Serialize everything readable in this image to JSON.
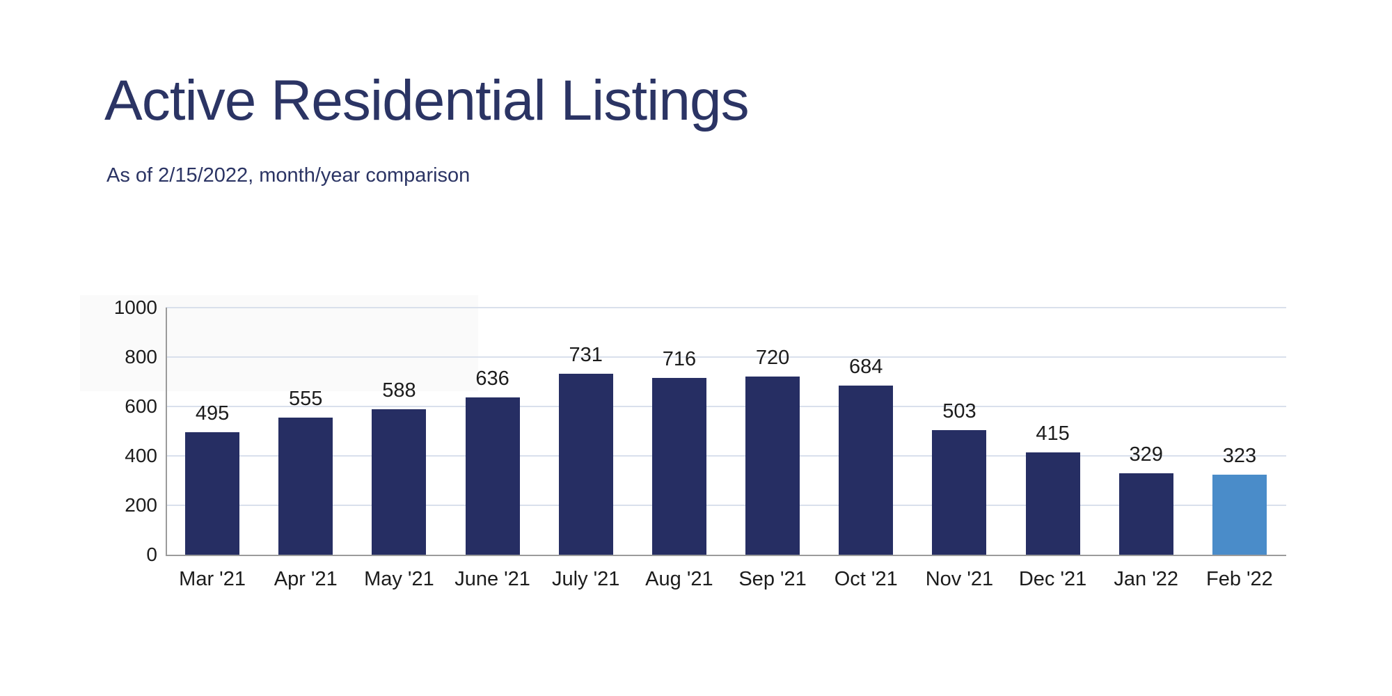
{
  "header": {
    "title": "Active Residential Listings",
    "subtitle": "As of 2/15/2022, month/year comparison"
  },
  "colors": {
    "title_text": "#2b3464",
    "bar_primary": "#262e63",
    "bar_highlight": "#4a8cc9",
    "gridline": "#d9e0ec",
    "axis_line": "#9b9b9b",
    "tick_label": "#1c1c1c",
    "value_label": "#1c1c1c",
    "background": "#ffffff"
  },
  "chart_data": {
    "type": "bar",
    "title": "Active Residential Listings",
    "subtitle": "As of 2/15/2022, month/year comparison",
    "categories": [
      "Mar '21",
      "Apr '21",
      "May '21",
      "June '21",
      "July '21",
      "Aug '21",
      "Sep '21",
      "Oct '21",
      "Nov '21",
      "Dec '21",
      "Jan '22",
      "Feb '22"
    ],
    "values": [
      495,
      555,
      588,
      636,
      731,
      716,
      720,
      684,
      503,
      415,
      329,
      323
    ],
    "highlight_index": 11,
    "ylim": [
      0,
      1000
    ],
    "yticks": [
      0,
      200,
      400,
      600,
      800,
      1000
    ],
    "grid": true,
    "legend": false,
    "data_labels": true,
    "xlabel": "",
    "ylabel": ""
  }
}
